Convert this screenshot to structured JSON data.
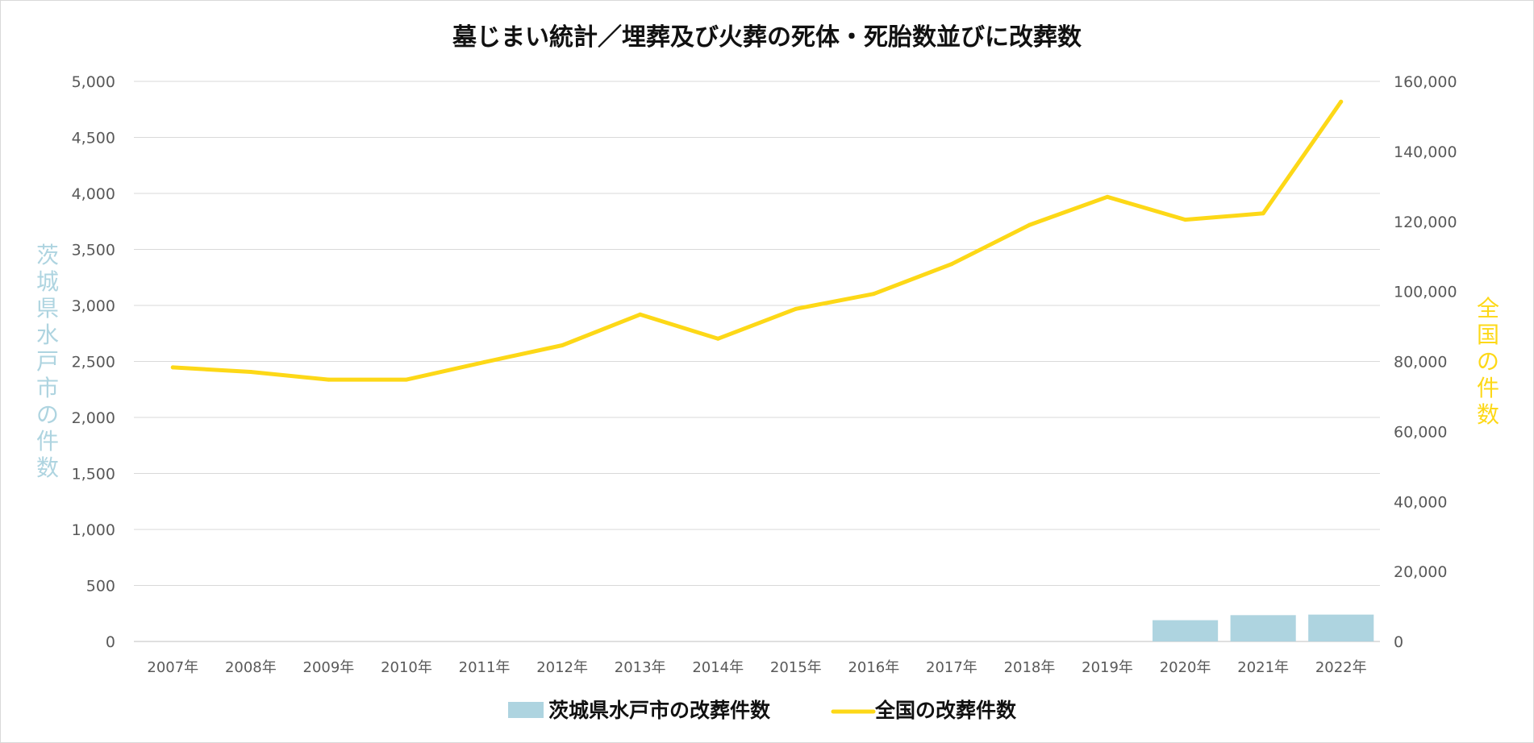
{
  "chart_data": {
    "type": "bar+line",
    "title": "墓じまい統計／埋葬及び火葬の死体・死胎数並びに改葬数",
    "categories": [
      "2007年",
      "2008年",
      "2009年",
      "2010年",
      "2011年",
      "2012年",
      "2013年",
      "2014年",
      "2015年",
      "2016年",
      "2017年",
      "2018年",
      "2019年",
      "2020年",
      "2021年",
      "2022年"
    ],
    "series": [
      {
        "name": "茨城県水戸市の改葬件数",
        "type": "bar",
        "axis": "left",
        "color": "#aed4e0",
        "values": [
          null,
          null,
          null,
          null,
          null,
          null,
          null,
          null,
          null,
          null,
          null,
          null,
          null,
          190,
          235,
          240
        ]
      },
      {
        "name": "全国の改葬件数",
        "type": "line",
        "axis": "right",
        "color": "#fdd817",
        "values": [
          78300,
          77000,
          74800,
          74800,
          79800,
          84600,
          93400,
          86500,
          95000,
          99300,
          107800,
          119000,
          127000,
          120500,
          122300,
          154200
        ]
      }
    ],
    "y_left": {
      "label": "茨城県水戸市の件数",
      "label_color": "#aed4e0",
      "range": [
        0,
        5000
      ],
      "ticks": [
        "0",
        "500",
        "1,000",
        "1,500",
        "2,000",
        "2,500",
        "3,000",
        "3,500",
        "4,000",
        "4,500",
        "5,000"
      ]
    },
    "y_right": {
      "label": "全国の件数",
      "label_color": "#fdd817",
      "range": [
        0,
        160000
      ],
      "ticks": [
        "0",
        "20,000",
        "40,000",
        "60,000",
        "80,000",
        "100,000",
        "120,000",
        "140,000",
        "160,000"
      ]
    },
    "grid": true,
    "legend_position": "bottom"
  }
}
